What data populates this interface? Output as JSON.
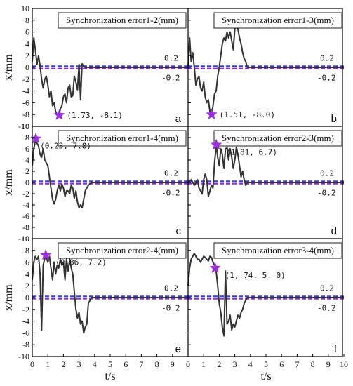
{
  "chart_data": [
    {
      "type": "line",
      "title": "Synchronization error1-2(mm)",
      "panel_letter": "a",
      "thresholds": [
        "0.2",
        "-0.2"
      ],
      "peak": {
        "x": 1.73,
        "y": -8.1,
        "label": "(1.73, -8.1)"
      },
      "series": [
        {
          "x": [
            0,
            0.1,
            0.2,
            0.3,
            0.4,
            0.5,
            0.6,
            0.7,
            0.8,
            0.9,
            1.0,
            1.1,
            1.2,
            1.3,
            1.4,
            1.5,
            1.6,
            1.73,
            1.8,
            1.9,
            2.0,
            2.1,
            2.2,
            2.3,
            2.4,
            2.5,
            2.6,
            2.7,
            2.8,
            2.9,
            3.0,
            3.1,
            3.2,
            3.3,
            3.4,
            4.0,
            6.0,
            8.0,
            10.0
          ],
          "y": [
            1,
            5,
            3,
            0.5,
            2,
            0.3,
            -2,
            -3.5,
            -2,
            -1.5,
            -3,
            -5,
            -4,
            -6.5,
            -6,
            -7.5,
            -8,
            -8.1,
            -7,
            -6.5,
            -5,
            -4.5,
            -6,
            -3.5,
            -3,
            -5,
            -4.8,
            -1.5,
            -2.5,
            -3.8,
            0.5,
            -5.5,
            0.6,
            0.2,
            0,
            0,
            0,
            0,
            0
          ]
        }
      ]
    },
    {
      "type": "line",
      "title": "Synchronization error1-3(mm)",
      "panel_letter": "b",
      "thresholds": [
        "0.2",
        "-0.2"
      ],
      "peak": {
        "x": 1.51,
        "y": -8.0,
        "label": "(1.51, -8.0)"
      },
      "series": [
        {
          "x": [
            0,
            0.1,
            0.2,
            0.3,
            0.4,
            0.5,
            0.6,
            0.7,
            0.8,
            0.9,
            1.0,
            1.1,
            1.2,
            1.3,
            1.4,
            1.51,
            1.6,
            1.7,
            1.8,
            1.9,
            2.0,
            2.1,
            2.2,
            2.3,
            2.4,
            2.5,
            2.6,
            2.7,
            2.8,
            2.9,
            3.0,
            3.1,
            3.2,
            3.3,
            3.4,
            3.5,
            3.6,
            3.7,
            3.8,
            4.0,
            6.0,
            8.0,
            10.0
          ],
          "y": [
            0,
            5,
            1,
            2.5,
            0,
            -3,
            -2,
            -1.5,
            -3.5,
            -4,
            -2.5,
            -5,
            -6,
            -5.5,
            -7.5,
            -8,
            -6.5,
            -4.5,
            -4,
            -1.5,
            0,
            2,
            4,
            5,
            4.5,
            6,
            5,
            6,
            4.5,
            3,
            6.5,
            7,
            6.5,
            5,
            4,
            2.5,
            1.5,
            1,
            0,
            0,
            0,
            0,
            0
          ]
        }
      ]
    },
    {
      "type": "line",
      "title": "Synchronization error1-4(mm)",
      "panel_letter": "c",
      "thresholds": [
        "0.2",
        "-0.2"
      ],
      "peak": {
        "x": 0.23,
        "y": 7.8,
        "label": "(0.23, 7.8)"
      },
      "series": [
        {
          "x": [
            0,
            0.1,
            0.23,
            0.3,
            0.4,
            0.5,
            0.6,
            0.7,
            0.8,
            0.9,
            1.0,
            1.1,
            1.2,
            1.3,
            1.4,
            1.5,
            1.6,
            1.7,
            1.8,
            1.9,
            2.0,
            2.1,
            2.2,
            2.3,
            2.4,
            2.5,
            2.6,
            2.7,
            2.8,
            2.9,
            3.0,
            3.1,
            3.2,
            3.3,
            3.4,
            3.6,
            3.8,
            4.0,
            6.0,
            8.0,
            10.0
          ],
          "y": [
            3,
            6,
            7.8,
            7,
            6.5,
            5,
            4.5,
            6,
            4,
            3.5,
            3,
            1,
            -1,
            -3,
            -3.8,
            -3,
            -1.5,
            -0.5,
            -1.5,
            -0.3,
            -1,
            -2.5,
            -1.5,
            -1.5,
            -2,
            -0.5,
            -1,
            -2.8,
            -1.5,
            -3.5,
            -4.5,
            -4,
            -4.5,
            -3,
            -1.5,
            -0.5,
            0,
            0,
            0,
            0,
            0
          ]
        }
      ]
    },
    {
      "type": "line",
      "title": "Synchronization error2-3(mm)",
      "panel_letter": "d",
      "thresholds": [
        "0.2",
        "-0.2"
      ],
      "peak": {
        "x": 1.81,
        "y": 6.7,
        "label": "(1.81, 6.7)"
      },
      "series": [
        {
          "x": [
            0,
            0.2,
            0.4,
            0.6,
            0.7,
            0.8,
            0.9,
            1.0,
            1.1,
            1.2,
            1.3,
            1.4,
            1.5,
            1.6,
            1.7,
            1.81,
            1.9,
            2.0,
            2.1,
            2.2,
            2.3,
            2.4,
            2.5,
            2.6,
            2.7,
            2.8,
            2.9,
            3.0,
            3.1,
            3.2,
            3.3,
            3.4,
            3.5,
            3.6,
            3.7,
            3.8,
            4.0,
            6.0,
            8.0,
            10.0
          ],
          "y": [
            0,
            0.5,
            -0.5,
            0.5,
            -1,
            -1.5,
            -2,
            0.5,
            1.5,
            0.5,
            -2.5,
            -1.5,
            -0.5,
            -1,
            3.5,
            6.7,
            4.5,
            3,
            6,
            5,
            2.5,
            6,
            6.2,
            4,
            6,
            4.5,
            2.5,
            4,
            6.3,
            5,
            3,
            1,
            2,
            0.5,
            -0.5,
            0,
            0,
            0,
            0,
            0
          ]
        }
      ]
    },
    {
      "type": "line",
      "title": "Synchronization error2-4(mm)",
      "panel_letter": "e",
      "thresholds": [
        "0.2",
        "-0.2"
      ],
      "peak": {
        "x": 0.86,
        "y": 7.2,
        "label": "(0.86, 7.2)"
      },
      "series": [
        {
          "x": [
            0,
            0.1,
            0.2,
            0.3,
            0.4,
            0.5,
            0.6,
            0.7,
            0.86,
            1.0,
            1.1,
            1.2,
            1.3,
            1.4,
            1.5,
            1.6,
            1.7,
            1.8,
            1.9,
            2.0,
            2.1,
            2.2,
            2.3,
            2.4,
            2.5,
            2.6,
            2.7,
            2.8,
            2.9,
            3.0,
            3.1,
            3.2,
            3.3,
            3.4,
            3.5,
            3.6,
            3.8,
            4.0,
            6.0,
            8.0,
            10.0
          ],
          "y": [
            3,
            6,
            7,
            6.5,
            7,
            4,
            -5.5,
            5.5,
            7.2,
            6,
            7,
            5,
            3,
            6,
            4,
            5.5,
            5,
            6.5,
            5.5,
            6,
            3,
            6.5,
            4.5,
            6.5,
            5,
            4,
            1,
            -2,
            -3.5,
            -2.5,
            -4.5,
            -4,
            -6,
            -5,
            -4.5,
            -1,
            0,
            0,
            0,
            0,
            0
          ]
        }
      ]
    },
    {
      "type": "line",
      "title": "Synchronization error3-4(mm)",
      "panel_letter": "f",
      "thresholds": [
        "0.2",
        "-0.2"
      ],
      "peak": {
        "x": 1.74,
        "y": 5.0,
        "label": "(1, 74. 5. 0)"
      },
      "series": [
        {
          "x": [
            0,
            0.1,
            0.2,
            0.3,
            0.4,
            0.5,
            0.6,
            0.7,
            0.8,
            0.9,
            1.0,
            1.1,
            1.2,
            1.3,
            1.4,
            1.5,
            1.6,
            1.7,
            1.8,
            1.9,
            2.0,
            2.1,
            2.2,
            2.3,
            2.4,
            2.5,
            2.6,
            2.7,
            2.8,
            2.9,
            3.0,
            3.1,
            3.2,
            3.3,
            3.4,
            3.5,
            3.6,
            3.7,
            3.8,
            4.0,
            6.0,
            8.0,
            10.0
          ],
          "y": [
            2,
            5,
            6.5,
            7,
            7.5,
            7,
            6.5,
            6.5,
            6,
            6.5,
            7,
            6.8,
            6.5,
            6.2,
            7,
            6.8,
            6,
            5.5,
            4.5,
            2,
            -1,
            -2.5,
            -5,
            -6.5,
            4.5,
            -4.5,
            -4,
            -3,
            -5.5,
            -4.5,
            -5,
            -4,
            -3,
            -3.5,
            -2.5,
            -2,
            -1,
            -0.5,
            0,
            0,
            0,
            0,
            0
          ]
        }
      ]
    }
  ],
  "axes": {
    "ylabel": "x/mm",
    "xlabel": "t/s",
    "xlim": [
      0,
      10
    ],
    "ylim": [
      -10,
      10
    ],
    "x_ticks": [
      "0",
      "1",
      "2",
      "3",
      "4",
      "5",
      "6",
      "7",
      "8",
      "9",
      "10"
    ],
    "y_ticks": [
      "10",
      "8",
      "6",
      "4",
      "2",
      "0",
      "-2",
      "-4",
      "-6",
      "-8",
      "-10"
    ]
  },
  "colors": {
    "line": "#333333",
    "threshold_upper": "#3a3af0",
    "threshold_lower": "#8a2be2",
    "marker": "#9b2ee0",
    "axis": "#000000"
  }
}
